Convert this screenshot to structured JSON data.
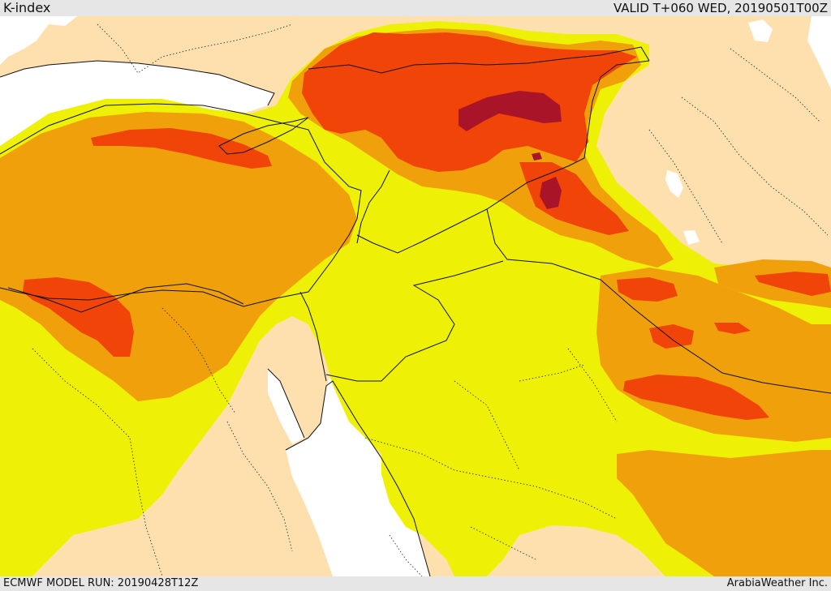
{
  "header": {
    "title": "K-index",
    "valid_time": "VALID T+060 WED, 20190501T00Z"
  },
  "footer": {
    "model_run": "ECMWF MODEL RUN: 20190428T12Z",
    "credit": "ArabiaWeather Inc."
  },
  "map": {
    "colors": {
      "land": "#fde0ae",
      "sea": "#ffffff",
      "band_yellow": "#eef005",
      "band_orange": "#f0a00a",
      "band_red": "#f04408",
      "band_darkred": "#aa1428",
      "border": "#111111",
      "admin_border": "#333333"
    }
  }
}
